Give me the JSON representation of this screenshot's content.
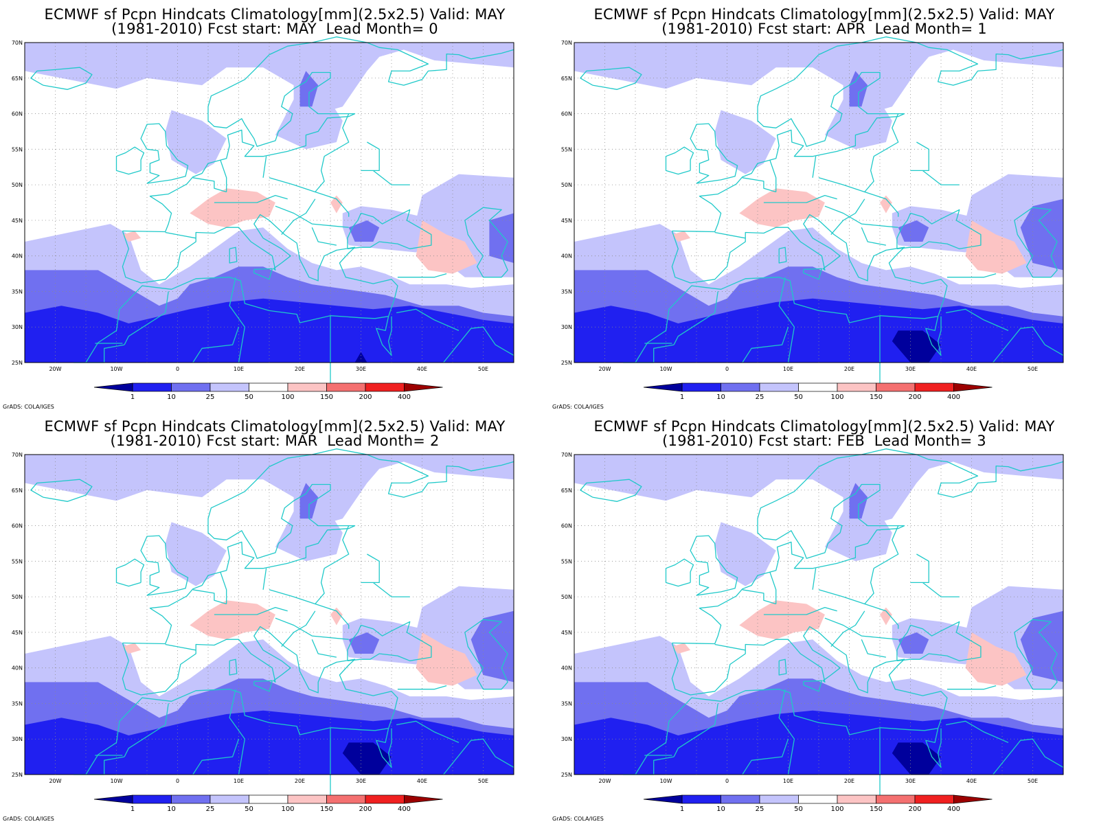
{
  "panels": [
    {
      "title_line1": "ECMWF sf Pcpn Hindcats Climatology[mm](2.5x2.5) Valid: MAY",
      "title_line2": "(1981-2010) Fcst start: MAY  Lead Month= 0",
      "lead": 0
    },
    {
      "title_line1": "ECMWF sf Pcpn Hindcats Climatology[mm](2.5x2.5) Valid: MAY",
      "title_line2": "(1981-2010) Fcst start: APR  Lead Month= 1",
      "lead": 1
    },
    {
      "title_line1": "ECMWF sf Pcpn Hindcats Climatology[mm](2.5x2.5) Valid: MAY",
      "title_line2": "(1981-2010) Fcst start: MAR  Lead Month= 2",
      "lead": 2
    },
    {
      "title_line1": "ECMWF sf Pcpn Hindcats Climatology[mm](2.5x2.5) Valid: MAY",
      "title_line2": "(1981-2010) Fcst start: FEB  Lead Month= 3",
      "lead": 3
    }
  ],
  "credit": "GrADS: COLA/IGES",
  "map": {
    "lon_range": [
      -25,
      55
    ],
    "lat_range": [
      25,
      70
    ],
    "lon_ticks": [
      "20W",
      "10W",
      "0",
      "10E",
      "20E",
      "30E",
      "40E",
      "50E"
    ],
    "lat_ticks": [
      "70N",
      "65N",
      "60N",
      "55N",
      "50N",
      "45N",
      "40N",
      "35N",
      "30N",
      "25N"
    ],
    "coast_color": "#1fc9c9",
    "grid": "dotted"
  },
  "colorbar": {
    "labels": [
      "1",
      "10",
      "25",
      "50",
      "100",
      "150",
      "200",
      "400"
    ],
    "colors": [
      "#00009c",
      "#2020f0",
      "#7070f0",
      "#c4c4fc",
      "#ffffff",
      "#fcc4c4",
      "#f47070",
      "#f02020",
      "#9c0000"
    ]
  }
}
